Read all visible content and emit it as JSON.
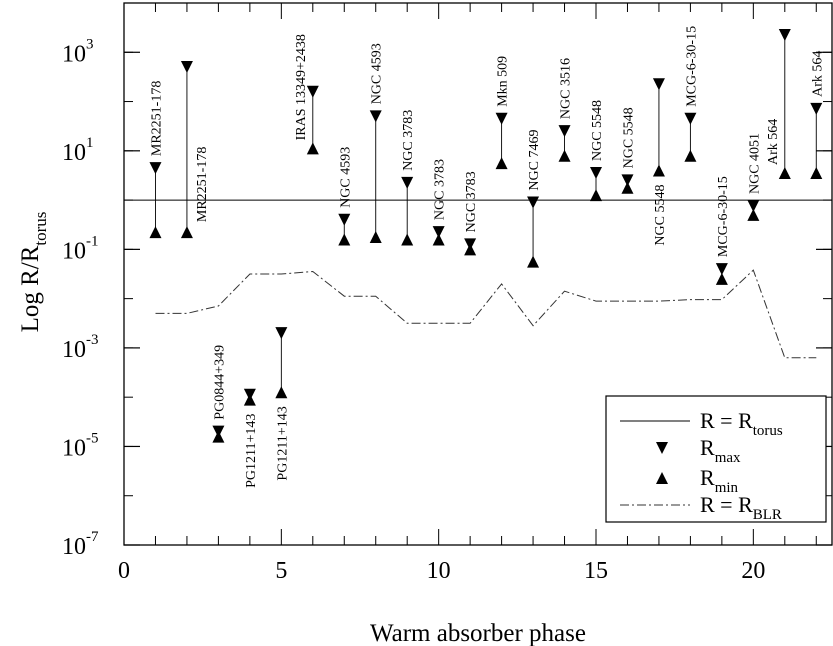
{
  "chart_data": {
    "type": "scatter",
    "xlabel": "Warm absorber phase",
    "ylabel": {
      "base": "Log R/R",
      "sub": "torus"
    },
    "xlim": [
      0,
      22.5
    ],
    "ylim_log10": [
      -7,
      4
    ],
    "x_ticks": [
      {
        "value": 0,
        "label": "0"
      },
      {
        "value": 5,
        "label": "5"
      },
      {
        "value": 10,
        "label": "10"
      },
      {
        "value": 15,
        "label": "15"
      },
      {
        "value": 20,
        "label": "20"
      }
    ],
    "y_ticks": [
      {
        "log": 3,
        "base": "10",
        "exp": "3"
      },
      {
        "log": 1,
        "base": "10",
        "exp": "1"
      },
      {
        "log": -1,
        "base": "10",
        "exp": "-1"
      },
      {
        "log": -3,
        "base": "10",
        "exp": "-3"
      },
      {
        "log": -5,
        "base": "10",
        "exp": "-5"
      },
      {
        "log": -7,
        "base": "10",
        "exp": "-7"
      }
    ],
    "torus_line_log": 0,
    "blr_series": {
      "x": [
        1,
        2,
        3,
        4,
        5,
        6,
        7,
        8,
        9,
        10,
        11,
        12,
        13,
        14,
        15,
        16,
        17,
        18,
        19,
        20,
        21,
        22
      ],
      "ylog": [
        -2.3,
        -2.3,
        -2.15,
        -1.5,
        -1.5,
        -1.45,
        -1.95,
        -1.95,
        -2.5,
        -2.5,
        -2.5,
        -1.7,
        -2.55,
        -1.85,
        -2.05,
        -2.05,
        -2.05,
        -2.02,
        -2.02,
        -1.42,
        -3.2,
        -3.2
      ]
    },
    "points": [
      {
        "x": 1,
        "max": 0.65,
        "min": -0.65,
        "label": "MR2251-178",
        "label_pos": "above"
      },
      {
        "x": 2,
        "max": 2.7,
        "min": -0.65,
        "label": "MR2251-178",
        "label_pos": "right"
      },
      {
        "x": 3,
        "max": -4.7,
        "min": -4.8,
        "label": "PG0844+349",
        "label_pos": "above"
      },
      {
        "x": 4,
        "max": -3.95,
        "min": -4.05,
        "label": "PG1211+143",
        "label_pos": "below"
      },
      {
        "x": 5,
        "max": -2.7,
        "min": -3.9,
        "label": "PG1211+143",
        "label_pos": "below"
      },
      {
        "x": 6,
        "max": 2.2,
        "min": 1.05,
        "label": "IRAS 13349+2438",
        "label_pos": "left"
      },
      {
        "x": 7,
        "max": -0.4,
        "min": -0.8,
        "label": "NGC 4593",
        "label_pos": "above"
      },
      {
        "x": 8,
        "max": 1.7,
        "min": -0.75,
        "label": "NGC 4593",
        "label_pos": "above"
      },
      {
        "x": 9,
        "max": 0.35,
        "min": -0.8,
        "label": "NGC 3783",
        "label_pos": "above"
      },
      {
        "x": 10,
        "max": -0.65,
        "min": -0.8,
        "label": "NGC 3783",
        "label_pos": "above"
      },
      {
        "x": 11,
        "max": -0.9,
        "min": -1.0,
        "label": "NGC 3783",
        "label_pos": "above"
      },
      {
        "x": 12,
        "max": 1.65,
        "min": 0.75,
        "label": "Mkn 509",
        "label_pos": "above"
      },
      {
        "x": 13,
        "max": -0.05,
        "min": -1.25,
        "label": "NGC 7469",
        "label_pos": "above"
      },
      {
        "x": 14,
        "max": 1.4,
        "min": 0.9,
        "label": "NGC 3516",
        "label_pos": "above"
      },
      {
        "x": 15,
        "max": 0.55,
        "min": 0.1,
        "label": "NGC 5548",
        "label_pos": "above"
      },
      {
        "x": 16,
        "max": 0.4,
        "min": 0.25,
        "label": "NGC 5548",
        "label_pos": "above"
      },
      {
        "x": 17,
        "max": 2.35,
        "min": 0.6,
        "label": "NGC 5548",
        "label_pos": "below"
      },
      {
        "x": 18,
        "max": 1.65,
        "min": 0.9,
        "label": "MCG-6-30-15",
        "label_pos": "above"
      },
      {
        "x": 19,
        "max": -1.4,
        "min": -1.6,
        "label": "MCG-6-30-15",
        "label_pos": "above"
      },
      {
        "x": 20,
        "max": -0.12,
        "min": -0.3,
        "label": "NGC 4051",
        "label_pos": "above"
      },
      {
        "x": 21,
        "max": 3.35,
        "min": 0.55,
        "label": "Ark 564",
        "label_pos": "left"
      },
      {
        "x": 22,
        "max": 1.85,
        "min": 0.55,
        "label": "Ark 564",
        "label_pos": "above"
      }
    ],
    "legend": {
      "position": "bottom-right",
      "entries": [
        {
          "kind": "line-solid",
          "text": "R = R",
          "sub": "torus"
        },
        {
          "kind": "marker-down",
          "text": "R",
          "sub": "max"
        },
        {
          "kind": "marker-up",
          "text": "R",
          "sub": "min"
        },
        {
          "kind": "line-dashdot",
          "text": "R = R",
          "sub": "BLR"
        }
      ]
    }
  }
}
